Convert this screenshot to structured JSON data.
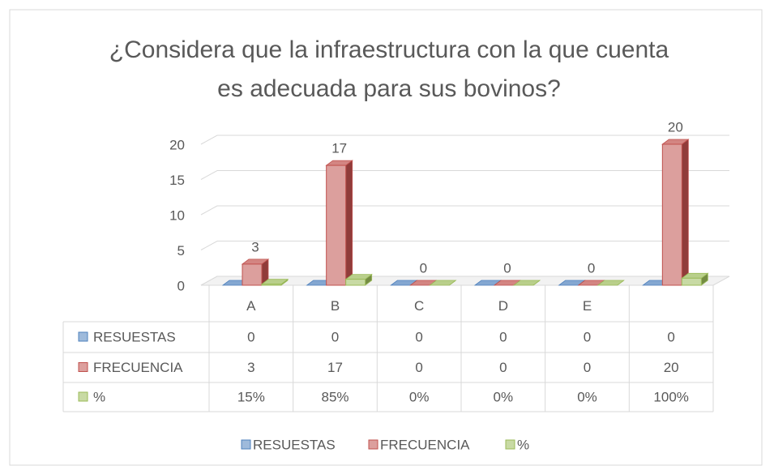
{
  "chart_data": {
    "type": "bar3d",
    "title": "¿Considera que la infraestructura con la que cuenta es adecuada para sus bovinos?",
    "categories": [
      "A",
      "B",
      "C",
      "D",
      "E",
      null
    ],
    "series": [
      {
        "name": "RESUESTAS",
        "color": "#4f81bd",
        "values": [
          0,
          0,
          0,
          0,
          0,
          0
        ]
      },
      {
        "name": "FRECUENCIA",
        "color": "#c0504d",
        "values": [
          3,
          17,
          0,
          0,
          0,
          20
        ]
      },
      {
        "name": "%",
        "color": "#9bbb59",
        "values": [
          0.15,
          0.85,
          0,
          0,
          0,
          1
        ],
        "value_labels": [
          "15%",
          "85%",
          "0%",
          "0%",
          "0%",
          "100%"
        ]
      }
    ],
    "data_labels_series": 1,
    "ylim": [
      0,
      20
    ],
    "yticks": [
      0,
      5,
      10,
      15,
      20
    ],
    "grid": true,
    "data_table": true,
    "legend": "bottom"
  }
}
